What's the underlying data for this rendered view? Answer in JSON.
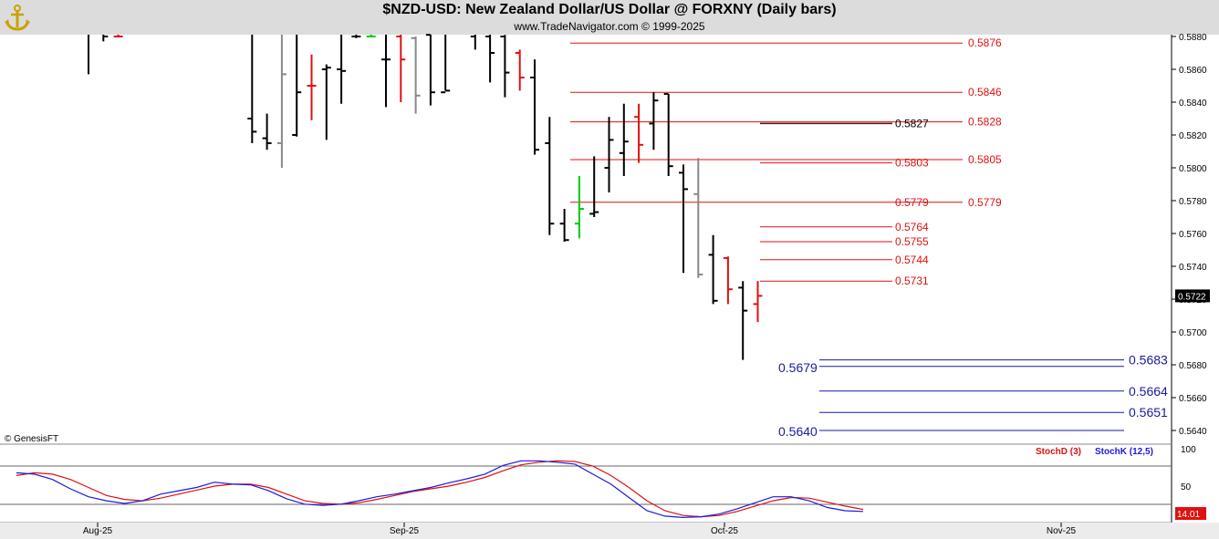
{
  "header": {
    "title": "$NZD-USD:  New Zealand Dollar/US Dollar @ FORXNY  (Daily bars)",
    "subtitle": "www.TradeNavigator.com © 1999-2025",
    "logo_icon": "genesis-anchor-logo"
  },
  "copyright": "© GenesisFT",
  "colors": {
    "up_bar": "#000000",
    "down_bar": "#e01010",
    "neutral_bar": "#888888",
    "doji_bar": "#00cc00",
    "resistance_line": "#e01010",
    "support_line": "#1a1aa0",
    "stoch_d": "#e01010",
    "stoch_k": "#1a1ae0"
  },
  "chart_data": [
    {
      "type": "ohlc",
      "title": "$NZD-USD:  New Zealand Dollar/US Dollar @ FORXNY  (Daily bars)",
      "ylim": [
        0.5625,
        0.5888
      ],
      "y_ticks": [
        "0.5880",
        "0.5860",
        "0.5840",
        "0.5820",
        "0.5800",
        "0.5780",
        "0.5760",
        "0.5740",
        "0.5720",
        "0.5700",
        "0.5680",
        "0.5660",
        "0.5640"
      ],
      "x_ticks": [
        "Aug-25",
        "Sep-25",
        "Oct-25",
        "Nov-25"
      ],
      "last_price": "0.5722",
      "bars": [
        {
          "date": "Aug-22",
          "open": 0.5905,
          "high": 0.5905,
          "low": 0.5857,
          "close": 0.5885,
          "color": "black"
        },
        {
          "date": "Aug-25",
          "open": 0.5886,
          "high": 0.5895,
          "low": 0.5877,
          "close": 0.588,
          "color": "black"
        },
        {
          "date": "Aug-26",
          "open": 0.588,
          "high": 0.5895,
          "low": 0.588,
          "close": 0.588,
          "color": "red"
        },
        {
          "date": "Sep-08",
          "open": 0.583,
          "high": 0.5885,
          "low": 0.5815,
          "close": 0.5822,
          "color": "black"
        },
        {
          "date": "Sep-09",
          "open": 0.5818,
          "high": 0.5833,
          "low": 0.5811,
          "close": 0.5815,
          "color": "black"
        },
        {
          "date": "Sep-10",
          "open": 0.5815,
          "high": 0.5887,
          "low": 0.58,
          "close": 0.5857,
          "color": "gray"
        },
        {
          "date": "Sep-11",
          "open": 0.582,
          "high": 0.5886,
          "low": 0.5819,
          "close": 0.5846,
          "color": "black"
        },
        {
          "date": "Sep-12",
          "open": 0.585,
          "high": 0.5869,
          "low": 0.5829,
          "close": 0.585,
          "color": "red"
        },
        {
          "date": "Sep-15",
          "open": 0.586,
          "high": 0.5863,
          "low": 0.5817,
          "close": 0.5861,
          "color": "black"
        },
        {
          "date": "Sep-16",
          "open": 0.586,
          "high": 0.5885,
          "low": 0.5839,
          "close": 0.5859,
          "color": "black"
        },
        {
          "date": "Sep-17",
          "open": 0.588,
          "high": 0.5895,
          "low": 0.5879,
          "close": 0.588,
          "color": "black"
        },
        {
          "date": "Sep-18",
          "open": 0.588,
          "high": 0.589,
          "low": 0.588,
          "close": 0.588,
          "color": "green"
        },
        {
          "date": "Sep-19",
          "open": 0.5866,
          "high": 0.5895,
          "low": 0.5837,
          "close": 0.5866,
          "color": "black"
        },
        {
          "date": "Sep-22",
          "open": 0.588,
          "high": 0.5882,
          "low": 0.584,
          "close": 0.5866,
          "color": "red"
        },
        {
          "date": "Sep-23",
          "open": 0.5879,
          "high": 0.588,
          "low": 0.5833,
          "close": 0.5844,
          "color": "gray"
        },
        {
          "date": "Sep-24",
          "open": 0.5881,
          "high": 0.5895,
          "low": 0.5838,
          "close": 0.5846,
          "color": "black"
        },
        {
          "date": "Sep-25",
          "open": 0.5846,
          "high": 0.5895,
          "low": 0.5847,
          "close": 0.5847,
          "color": "black"
        },
        {
          "date": "Sep-29",
          "open": 0.588,
          "high": 0.5884,
          "low": 0.5872,
          "close": 0.5882,
          "color": "black"
        },
        {
          "date": "Sep-30",
          "open": 0.588,
          "high": 0.5891,
          "low": 0.5852,
          "close": 0.587,
          "color": "black"
        },
        {
          "date": "Oct-01",
          "open": 0.588,
          "high": 0.5881,
          "low": 0.5843,
          "close": 0.5858,
          "color": "black"
        },
        {
          "date": "Oct-02",
          "open": 0.587,
          "high": 0.5872,
          "low": 0.5847,
          "close": 0.5855,
          "color": "red"
        },
        {
          "date": "Oct-03",
          "open": 0.5855,
          "high": 0.5866,
          "low": 0.5808,
          "close": 0.5811,
          "color": "black"
        },
        {
          "date": "Oct-06",
          "open": 0.5815,
          "high": 0.5831,
          "low": 0.5759,
          "close": 0.5766,
          "color": "black"
        },
        {
          "date": "Oct-07",
          "open": 0.5766,
          "high": 0.5775,
          "low": 0.5755,
          "close": 0.5756,
          "color": "black"
        },
        {
          "date": "Oct-08",
          "open": 0.5766,
          "high": 0.5795,
          "low": 0.5757,
          "close": 0.5775,
          "color": "green"
        },
        {
          "date": "Oct-09",
          "open": 0.5772,
          "high": 0.5807,
          "low": 0.577,
          "close": 0.5773,
          "color": "black"
        },
        {
          "date": "Oct-10",
          "open": 0.58,
          "high": 0.5831,
          "low": 0.5785,
          "close": 0.5817,
          "color": "black"
        },
        {
          "date": "Oct-13",
          "open": 0.5809,
          "high": 0.5839,
          "low": 0.5795,
          "close": 0.5816,
          "color": "black"
        },
        {
          "date": "Oct-14",
          "open": 0.5831,
          "high": 0.5839,
          "low": 0.5803,
          "close": 0.5814,
          "color": "red"
        },
        {
          "date": "Oct-15",
          "open": 0.5827,
          "high": 0.5846,
          "low": 0.5811,
          "close": 0.5841,
          "color": "black"
        },
        {
          "date": "Oct-16",
          "open": 0.5845,
          "high": 0.5845,
          "low": 0.5795,
          "close": 0.5801,
          "color": "black"
        },
        {
          "date": "Oct-17",
          "open": 0.5797,
          "high": 0.5802,
          "low": 0.5736,
          "close": 0.5787,
          "color": "black"
        },
        {
          "date": "Oct-20",
          "open": 0.5784,
          "high": 0.5806,
          "low": 0.5733,
          "close": 0.5735,
          "color": "gray"
        },
        {
          "date": "Oct-21",
          "open": 0.5747,
          "high": 0.5759,
          "low": 0.5717,
          "close": 0.5719,
          "color": "black"
        },
        {
          "date": "Oct-22",
          "open": 0.5745,
          "high": 0.5746,
          "low": 0.5717,
          "close": 0.5726,
          "color": "red"
        },
        {
          "date": "Oct-23",
          "open": 0.5727,
          "high": 0.5731,
          "low": 0.5683,
          "close": 0.5713,
          "color": "black"
        },
        {
          "date": "Oct-24",
          "open": 0.5717,
          "high": 0.5731,
          "low": 0.5706,
          "close": 0.5722,
          "color": "red"
        }
      ],
      "levels": [
        {
          "label": "0.5876",
          "value": 0.5876,
          "color": "red",
          "side": "right"
        },
        {
          "label": "0.5846",
          "value": 0.5846,
          "color": "red",
          "side": "right"
        },
        {
          "label": "0.5828",
          "value": 0.5828,
          "color": "red",
          "side": "right"
        },
        {
          "label": "0.5827",
          "value": 0.5827,
          "color": "dark",
          "side": "left"
        },
        {
          "label": "0.5805",
          "value": 0.5805,
          "color": "red",
          "side": "right"
        },
        {
          "label": "0.5803",
          "value": 0.5803,
          "color": "red",
          "side": "left"
        },
        {
          "label": "0.5779",
          "value": 0.5779,
          "color": "red",
          "side": "right"
        },
        {
          "label": "0.5779",
          "value": 0.5779,
          "color": "red",
          "side": "left"
        },
        {
          "label": "0.5764",
          "value": 0.5764,
          "color": "red",
          "side": "left"
        },
        {
          "label": "0.5755",
          "value": 0.5755,
          "color": "red",
          "side": "left"
        },
        {
          "label": "0.5744",
          "value": 0.5744,
          "color": "red",
          "side": "left"
        },
        {
          "label": "0.5731",
          "value": 0.5731,
          "color": "red",
          "side": "left"
        },
        {
          "label": "0.5683",
          "value": 0.5683,
          "color": "blue",
          "side": "right"
        },
        {
          "label": "0.5679",
          "value": 0.5679,
          "color": "blue",
          "side": "left"
        },
        {
          "label": "0.5664",
          "value": 0.5664,
          "color": "blue",
          "side": "right"
        },
        {
          "label": "0.5651",
          "value": 0.5651,
          "color": "blue",
          "side": "right"
        },
        {
          "label": "0.5640",
          "value": 0.564,
          "color": "blue",
          "side": "left"
        }
      ]
    },
    {
      "type": "line",
      "ylim": [
        0,
        100
      ],
      "y_ticks": [
        "100",
        "50"
      ],
      "last_value": "14.01",
      "legend": [
        "StochD (3)",
        "StochK (12,5)"
      ],
      "series": [
        {
          "name": "StochD (3)",
          "color": "red",
          "values": [
            68,
            72,
            70,
            62,
            50,
            38,
            32,
            30,
            34,
            40,
            46,
            52,
            55,
            55,
            50,
            40,
            30,
            26,
            25,
            27,
            32,
            38,
            44,
            48,
            52,
            58,
            65,
            75,
            84,
            88,
            90,
            89,
            82,
            68,
            50,
            30,
            15,
            8,
            6,
            8,
            14,
            22,
            30,
            35,
            34,
            28,
            22,
            17
          ]
        },
        {
          "name": "StochK (12,5)",
          "color": "blue",
          "values": [
            72,
            70,
            62,
            48,
            36,
            30,
            26,
            30,
            40,
            45,
            50,
            58,
            55,
            54,
            45,
            33,
            25,
            23,
            25,
            30,
            36,
            40,
            45,
            50,
            57,
            63,
            70,
            83,
            90,
            90,
            88,
            85,
            70,
            55,
            35,
            15,
            7,
            5,
            6,
            10,
            18,
            27,
            36,
            36,
            30,
            20,
            15,
            14
          ]
        }
      ]
    }
  ]
}
